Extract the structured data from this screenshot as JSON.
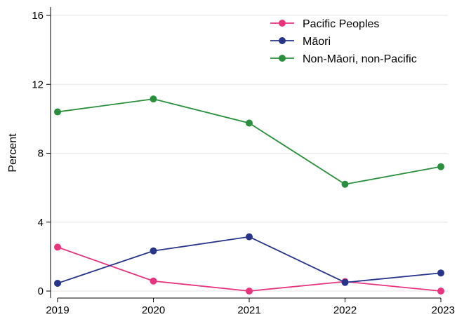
{
  "chart_data": {
    "type": "line",
    "title": "",
    "xlabel": "",
    "ylabel": "Percent",
    "x": [
      "2019",
      "2020",
      "2021",
      "2022",
      "2023"
    ],
    "ylim": [
      0,
      16
    ],
    "yticks": [
      "0",
      "4",
      "8",
      "12",
      "16"
    ],
    "grid": true,
    "legend_position": "top-right",
    "series": [
      {
        "name": "Pacific Peoples",
        "color": "#e8347e",
        "values": [
          2.55,
          0.58,
          0.0,
          0.55,
          0.0
        ]
      },
      {
        "name": "Māori",
        "color": "#263489",
        "values": [
          0.45,
          2.33,
          3.15,
          0.5,
          1.05
        ]
      },
      {
        "name": "Non-Māori, non-Pacific",
        "color": "#2a8f3c",
        "values": [
          10.4,
          11.15,
          9.75,
          6.2,
          7.22
        ]
      }
    ]
  }
}
